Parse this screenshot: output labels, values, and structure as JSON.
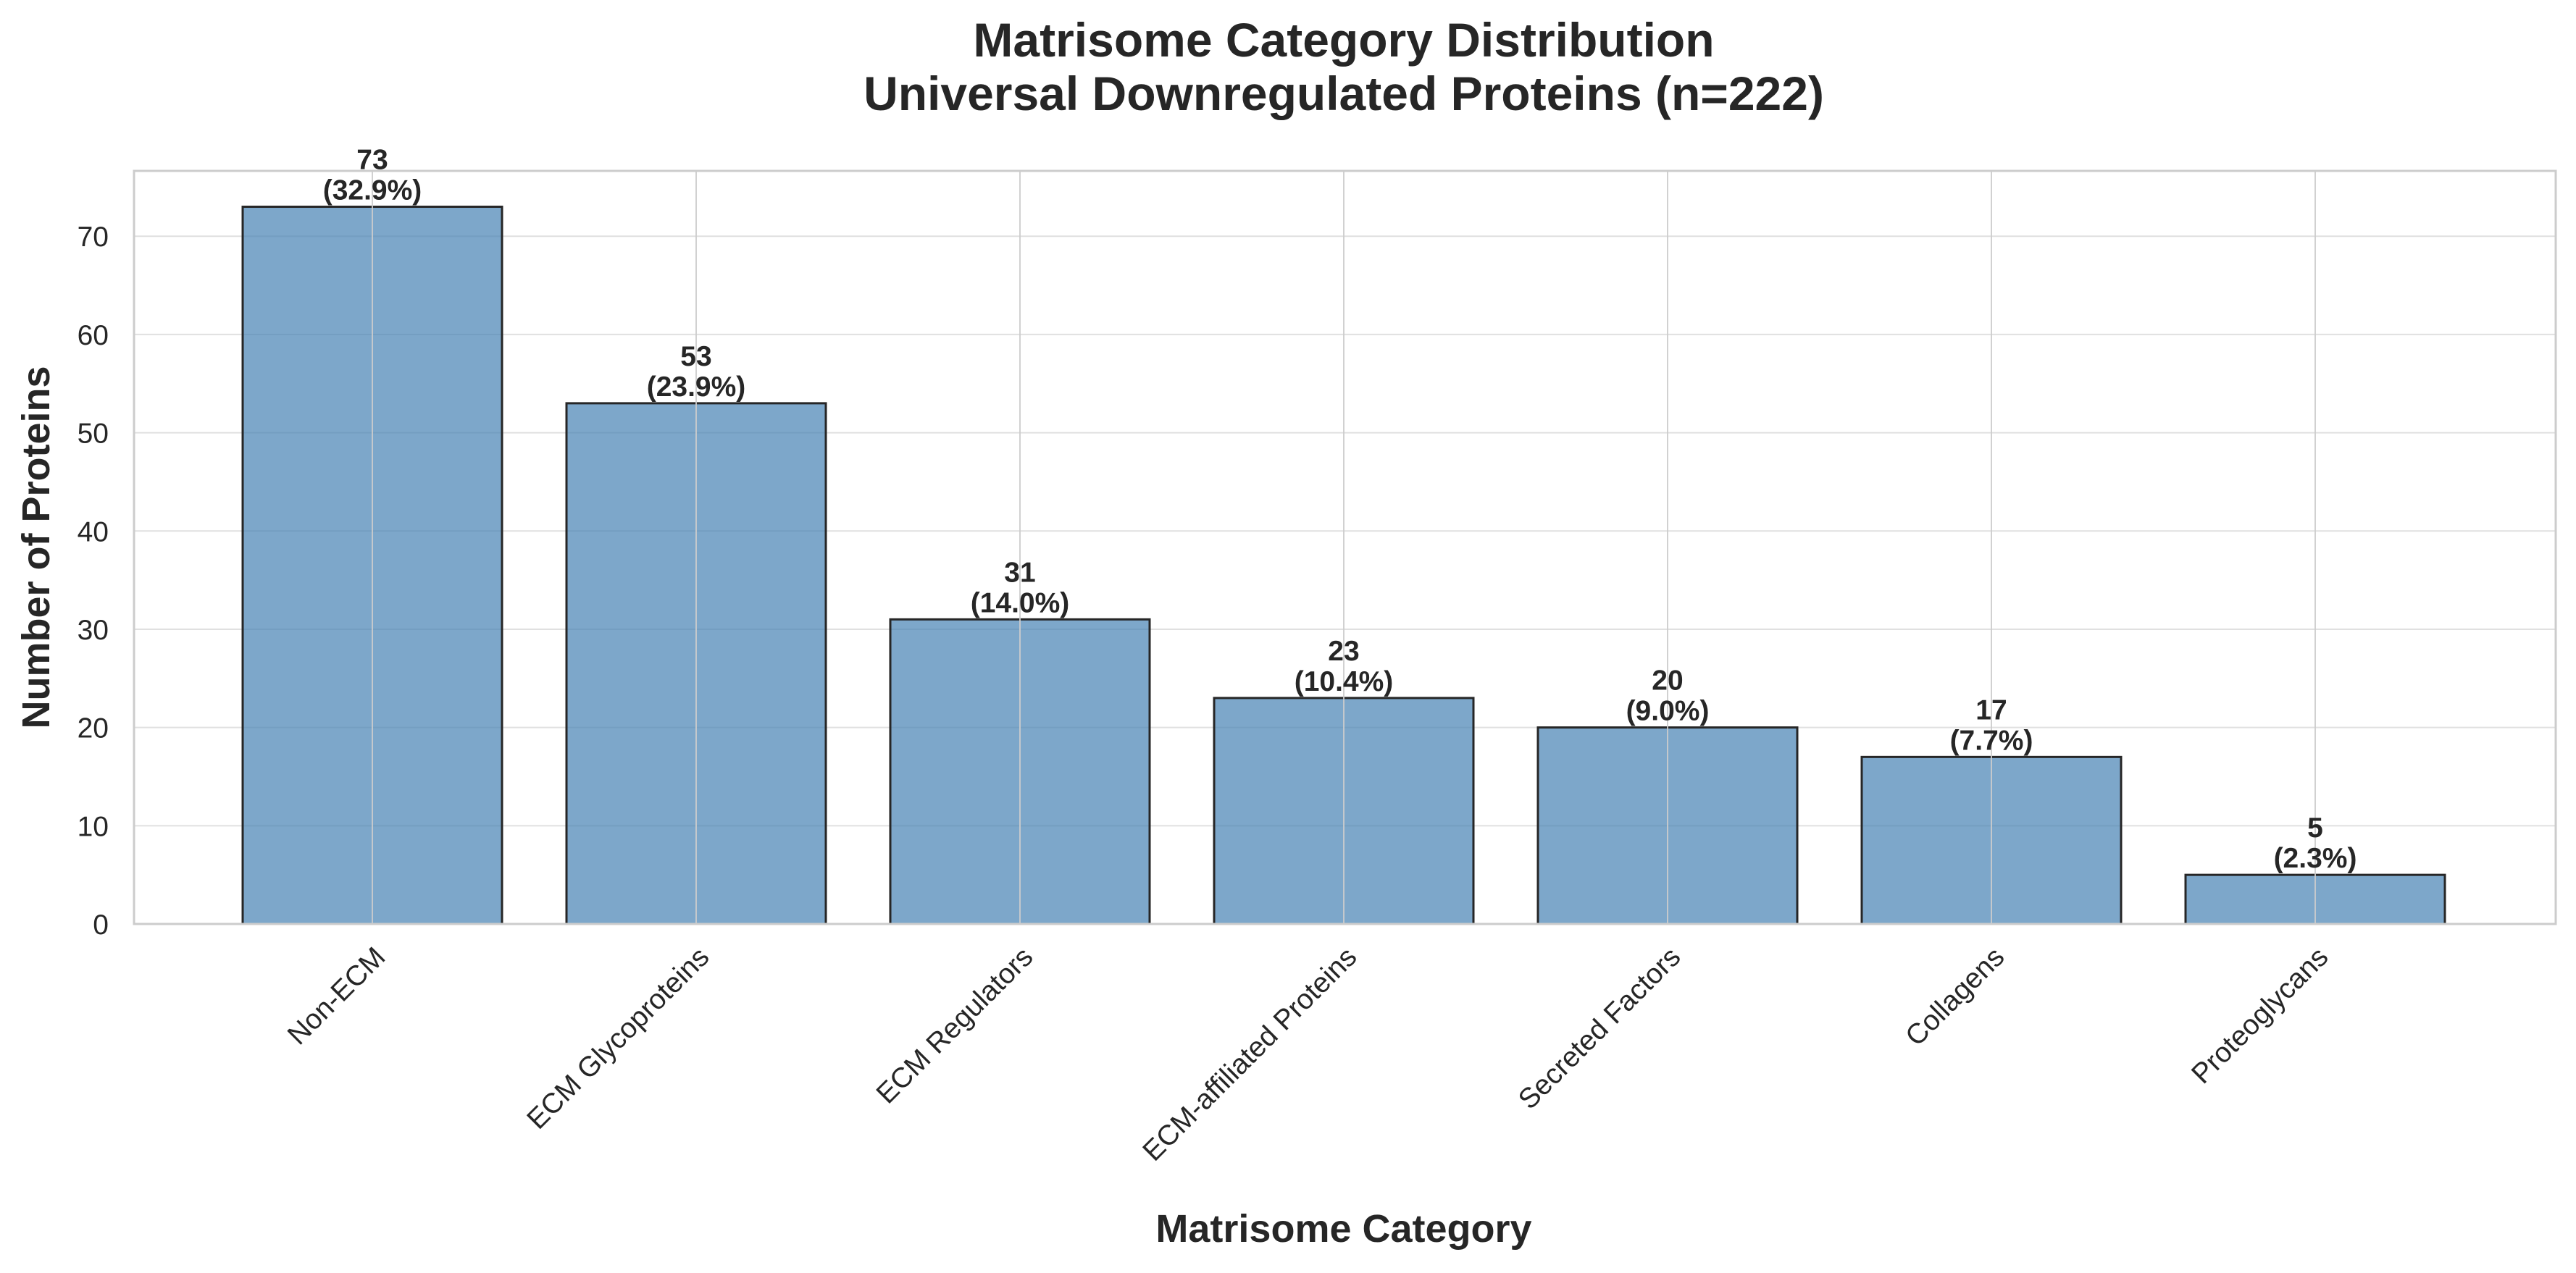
{
  "chart_data": {
    "type": "bar",
    "title": [
      "Matrisome Category Distribution",
      "Universal Downregulated Proteins (n=222)"
    ],
    "xlabel": "Matrisome Category",
    "ylabel": "Number of Proteins",
    "categories": [
      "Non-ECM",
      "ECM Glycoproteins",
      "ECM Regulators",
      "ECM-affiliated Proteins",
      "Secreted Factors",
      "Collagens",
      "Proteoglycans"
    ],
    "values": [
      73,
      53,
      31,
      23,
      20,
      17,
      5
    ],
    "value_labels": [
      "73",
      "53",
      "31",
      "23",
      "20",
      "17",
      "5"
    ],
    "percent_labels": [
      "(32.9%)",
      "(23.9%)",
      "(14.0%)",
      "(10.4%)",
      "(9.0%)",
      "(7.7%)",
      "(2.3%)"
    ],
    "ylim": [
      0,
      76.65
    ],
    "yticks": [
      0,
      10,
      20,
      30,
      40,
      50,
      60,
      70
    ],
    "grid": true,
    "legend": "none",
    "colors": {
      "bar_fill": "#4682b4",
      "bar_edge": "#262626",
      "grid": "#e0e0e0",
      "vgrid": "#cccccc",
      "frame": "#cccccc",
      "text": "#262626"
    }
  }
}
